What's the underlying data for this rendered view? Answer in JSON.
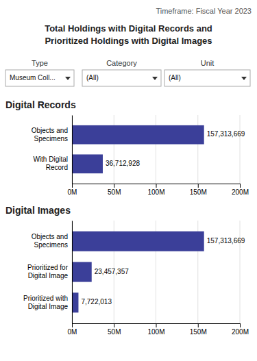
{
  "timeframe": "Timeframe:  Fiscal Year 2023",
  "title": "Total Holdings with Digital Records and\nPrioritized Holdings with Digital Images",
  "filters": [
    {
      "label": "Type",
      "value": "Museum Coll..."
    },
    {
      "label": "Category",
      "value": "(All)"
    },
    {
      "label": "Unit",
      "value": "(All)"
    }
  ],
  "chart_data": [
    {
      "type": "bar",
      "orientation": "horizontal",
      "title": "Digital Records",
      "categories": [
        "Objects and\nSpecimens",
        "With Digital\nRecord"
      ],
      "values": [
        157313669,
        36712928
      ],
      "value_labels": [
        "157,313,669",
        "36,712,928"
      ],
      "data_labels": true,
      "color": "#3B3F99",
      "xlim": [
        0,
        200000000
      ],
      "xticks": [
        {
          "value": 0,
          "label": "0M"
        },
        {
          "value": 50000000,
          "label": "50M"
        },
        {
          "value": 100000000,
          "label": "100M"
        },
        {
          "value": 150000000,
          "label": "150M"
        },
        {
          "value": 200000000,
          "label": "200M"
        }
      ],
      "grid": true
    },
    {
      "type": "bar",
      "orientation": "horizontal",
      "title": "Digital Images",
      "categories": [
        "Objects and\nSpecimens",
        "Prioritized for\nDigital Image",
        "Prioritized with\nDigital Image"
      ],
      "values": [
        157313669,
        23457357,
        7722013
      ],
      "value_labels": [
        "157,313,669",
        "23,457,357",
        "7,722,013"
      ],
      "data_labels": true,
      "color": "#3B3F99",
      "xlim": [
        0,
        200000000
      ],
      "xticks": [
        {
          "value": 0,
          "label": "0M"
        },
        {
          "value": 50000000,
          "label": "50M"
        },
        {
          "value": 100000000,
          "label": "100M"
        },
        {
          "value": 150000000,
          "label": "150M"
        },
        {
          "value": 200000000,
          "label": "200M"
        }
      ],
      "grid": true
    }
  ]
}
